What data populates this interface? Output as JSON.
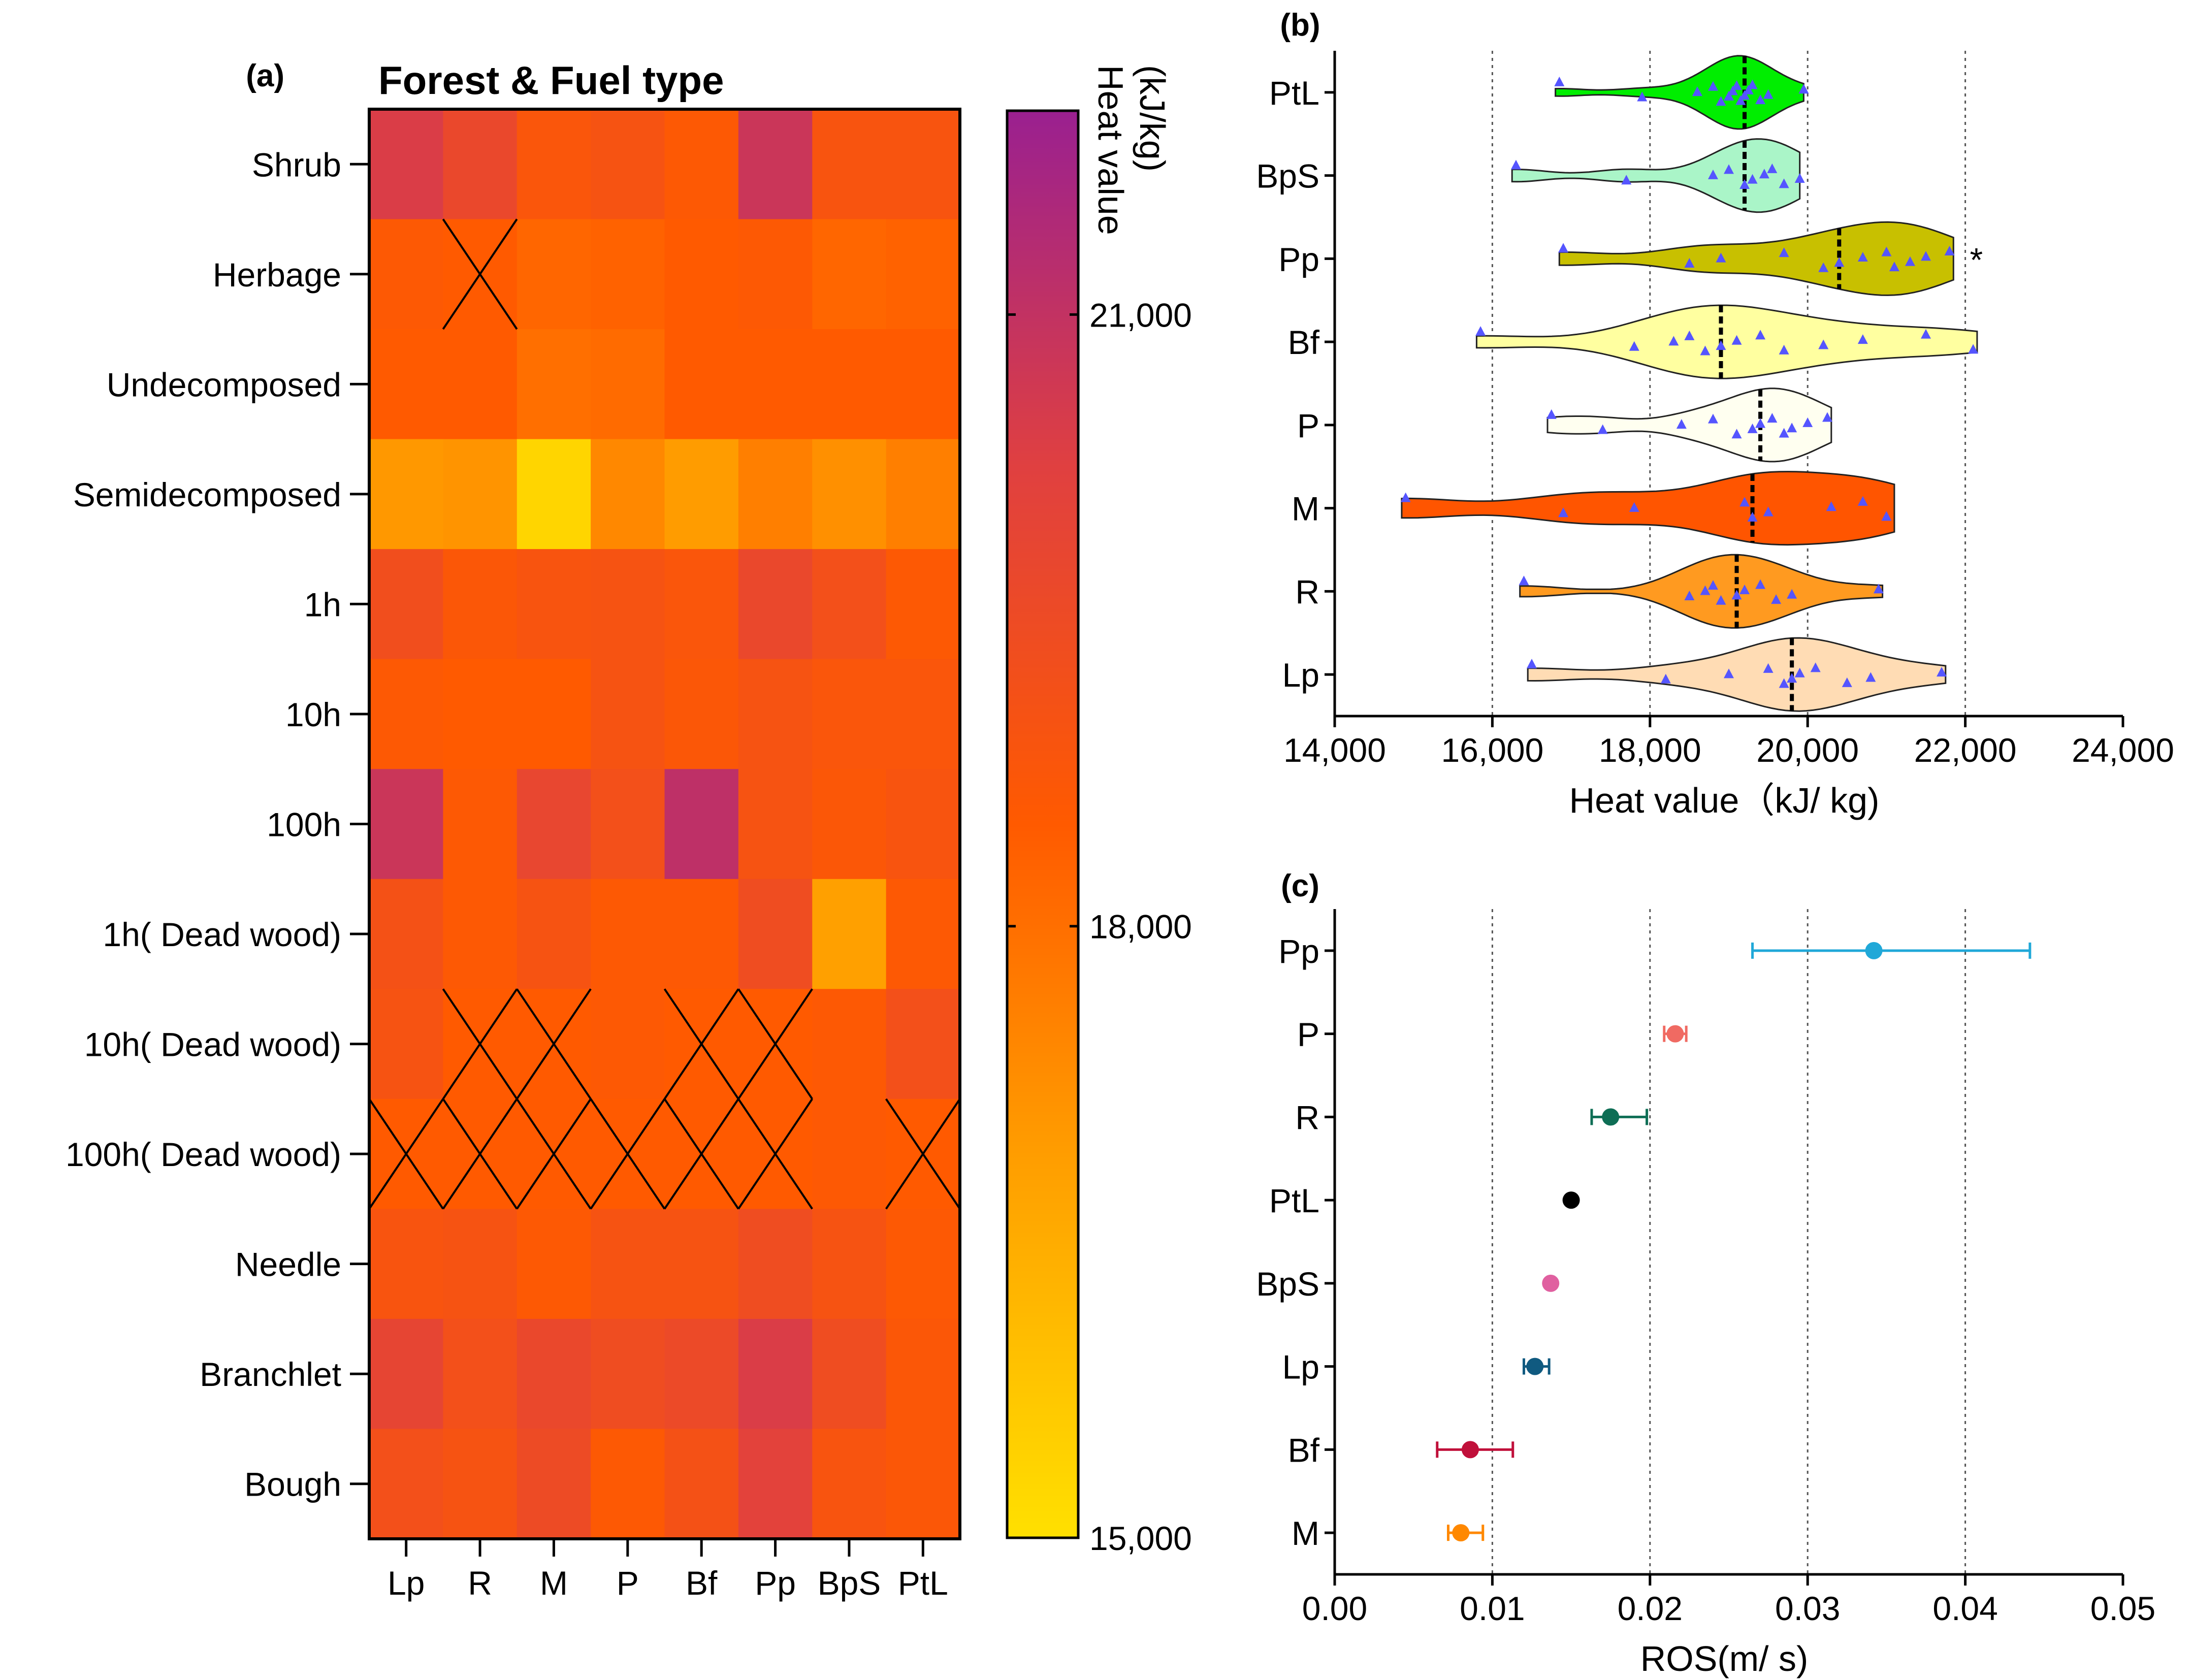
{
  "chart_data": [
    {
      "panel": "(a)",
      "type": "heatmap",
      "title": "Forest & Fuel type",
      "rows": [
        "Shrub",
        "Herbage",
        "Undecomposed",
        "Semidecomposed",
        "1h",
        "10h",
        "100h",
        "1h( Dead wood)",
        "10h( Dead wood)",
        "100h( Dead wood)",
        "Needle",
        "Branchlet",
        "Bough"
      ],
      "columns": [
        "Lp",
        "R",
        "M",
        "P",
        "Bf",
        "Pp",
        "BpS",
        "PtL"
      ],
      "values": [
        [
          20400,
          19700,
          18800,
          19000,
          18600,
          20800,
          18900,
          18900
        ],
        [
          18600,
          null,
          18200,
          18300,
          18500,
          18600,
          18200,
          18300
        ],
        [
          18500,
          18500,
          18000,
          18100,
          18500,
          18500,
          18500,
          18500
        ],
        [
          17000,
          17100,
          15300,
          17400,
          16900,
          17600,
          17200,
          17600
        ],
        [
          19300,
          18700,
          18900,
          19000,
          18800,
          19700,
          19200,
          18600
        ],
        [
          18600,
          18500,
          18500,
          19000,
          18700,
          19000,
          18800,
          18800
        ],
        [
          20800,
          18600,
          19800,
          19200,
          21100,
          19000,
          18700,
          18900
        ],
        [
          19100,
          18600,
          19000,
          18600,
          18600,
          19400,
          16800,
          18600
        ],
        [
          19000,
          null,
          null,
          18600,
          null,
          null,
          18600,
          19200
        ],
        [
          null,
          null,
          null,
          null,
          null,
          null,
          18600,
          null
        ],
        [
          18900,
          19000,
          18600,
          19000,
          19000,
          19400,
          19000,
          18600
        ],
        [
          19900,
          19200,
          19700,
          19400,
          19600,
          20400,
          19400,
          18700
        ],
        [
          19200,
          19000,
          19500,
          18600,
          19100,
          20100,
          18900,
          18700
        ]
      ],
      "crossed_cells_note": "X-marked cells",
      "colorbar": {
        "label": "Heat value\n(kJ/kg)",
        "label_line1": "Heat value",
        "label_line2": "(kJ/kg)",
        "ticks": [
          "15,000",
          "18,000",
          "21,000"
        ],
        "min": 15000,
        "max": 22000
      },
      "colors": {
        "low": "#ffe000",
        "mid": "#ff5a00",
        "high": "#9a2090"
      }
    },
    {
      "panel": "(b)",
      "type": "violin",
      "xlabel": "Heat value（kJ/ kg)",
      "xlim": [
        14000,
        24000
      ],
      "xticks": [
        "14,000",
        "16,000",
        "18,000",
        "20,000",
        "22,000",
        "24,000"
      ],
      "categories": [
        "PtL",
        "BpS",
        "Pp",
        "Bf",
        "P",
        "M",
        "R",
        "Lp"
      ],
      "series": [
        {
          "name": "PtL",
          "min": 16800,
          "max": 19950,
          "median": 19200,
          "color": "#00ee00",
          "points": [
            16850,
            17900,
            18600,
            18800,
            18900,
            19000,
            19050,
            19100,
            19150,
            19200,
            19250,
            19300,
            19400,
            19500,
            19950
          ]
        },
        {
          "name": "BpS",
          "min": 16250,
          "max": 19900,
          "median": 19200,
          "color": "#aaf5c8",
          "points": [
            16300,
            17700,
            18800,
            19000,
            19200,
            19300,
            19450,
            19550,
            19700,
            19900
          ]
        },
        {
          "name": "Pp",
          "min": 16850,
          "max": 21850,
          "median": 20400,
          "color": "#c8c000",
          "points": [
            16900,
            18500,
            18900,
            19700,
            20200,
            20400,
            20700,
            21000,
            21100,
            21300,
            21500,
            21800
          ],
          "annotation": "*"
        },
        {
          "name": "Bf",
          "min": 15800,
          "max": 22150,
          "median": 18900,
          "color": "#ffffa0",
          "points": [
            15850,
            17800,
            18300,
            18500,
            18700,
            18900,
            19100,
            19400,
            19700,
            20200,
            20700,
            21500,
            22100
          ]
        },
        {
          "name": "P",
          "min": 16700,
          "max": 20300,
          "median": 19400,
          "color": "#fffff0",
          "points": [
            16750,
            17400,
            18400,
            18800,
            19100,
            19300,
            19400,
            19550,
            19700,
            19800,
            20000,
            20250
          ]
        },
        {
          "name": "M",
          "min": 14850,
          "max": 21100,
          "median": 19300,
          "color": "#ff5500",
          "points": [
            14900,
            16900,
            17800,
            19200,
            19300,
            19500,
            20300,
            20700,
            21000
          ]
        },
        {
          "name": "R",
          "min": 16350,
          "max": 20950,
          "median": 19100,
          "color": "#ff9a20",
          "points": [
            16400,
            18500,
            18700,
            18800,
            18900,
            19100,
            19200,
            19400,
            19600,
            19800,
            20900
          ]
        },
        {
          "name": "Lp",
          "min": 16450,
          "max": 21750,
          "median": 19800,
          "color": "#ffdcb4",
          "points": [
            16500,
            18200,
            19000,
            19500,
            19700,
            19800,
            19900,
            20100,
            20500,
            20800,
            21700
          ]
        }
      ],
      "point_color": "#5555ff"
    },
    {
      "panel": "(c)",
      "type": "dot-errorbar",
      "xlabel": "ROS(m/ s)",
      "xlim": [
        0,
        0.05
      ],
      "xticks": [
        "0.00",
        "0.01",
        "0.02",
        "0.03",
        "0.04",
        "0.05"
      ],
      "categories": [
        "Pp",
        "P",
        "R",
        "PtL",
        "BpS",
        "Lp",
        "Bf",
        "M"
      ],
      "series": [
        {
          "name": "Pp",
          "mean": 0.0342,
          "lo": 0.0265,
          "hi": 0.0441,
          "color": "#20a8d8"
        },
        {
          "name": "P",
          "mean": 0.0216,
          "lo": 0.0209,
          "hi": 0.0223,
          "color": "#f06a62"
        },
        {
          "name": "R",
          "mean": 0.0175,
          "lo": 0.0163,
          "hi": 0.0198,
          "color": "#0e6e55"
        },
        {
          "name": "PtL",
          "mean": 0.015,
          "lo": 0.015,
          "hi": 0.015,
          "color": "#000000"
        },
        {
          "name": "BpS",
          "mean": 0.0137,
          "lo": 0.0137,
          "hi": 0.0137,
          "color": "#e060a0"
        },
        {
          "name": "Lp",
          "mean": 0.0127,
          "lo": 0.012,
          "hi": 0.0136,
          "color": "#105a80"
        },
        {
          "name": "Bf",
          "mean": 0.0086,
          "lo": 0.0065,
          "hi": 0.0113,
          "color": "#c0103a"
        },
        {
          "name": "M",
          "mean": 0.008,
          "lo": 0.0072,
          "hi": 0.0094,
          "color": "#ff8800"
        }
      ]
    }
  ]
}
